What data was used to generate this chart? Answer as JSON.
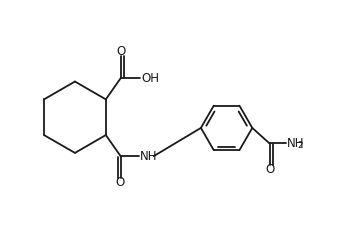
{
  "background_color": "#ffffff",
  "line_color": "#1a1a1a",
  "line_width": 1.3,
  "font_size": 8.5,
  "figsize": [
    3.39,
    2.38
  ],
  "dpi": 100,
  "xlim": [
    0,
    9.5
  ],
  "ylim": [
    0,
    6.6
  ]
}
